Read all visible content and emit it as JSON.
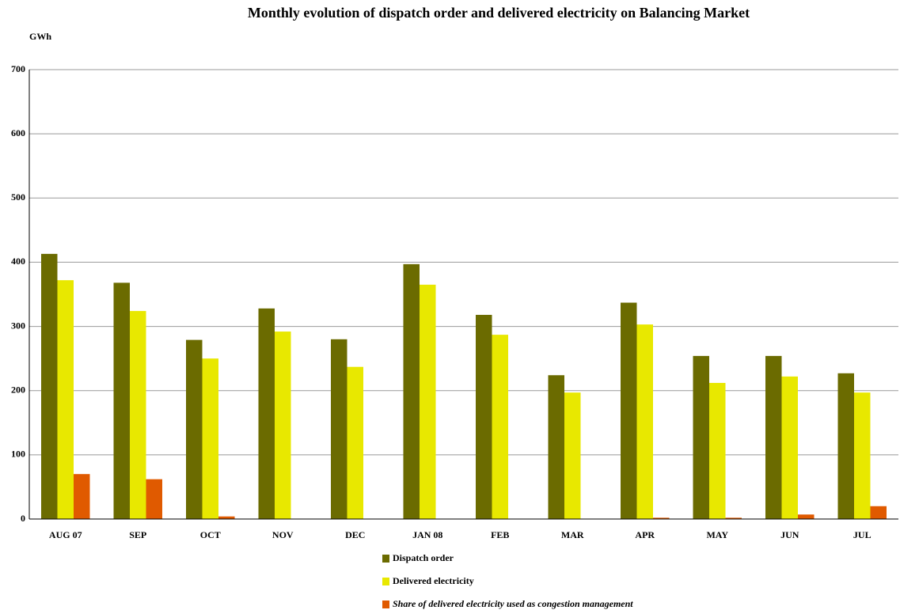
{
  "chart_data": {
    "type": "bar",
    "title": "Monthly evolution of dispatch order and delivered electricity on Balancing Market",
    "y_label": "GWh",
    "categories": [
      "AUG 07",
      "SEP",
      "OCT",
      "NOV",
      "DEC",
      "JAN 08",
      "FEB",
      "MAR",
      "APR",
      "MAY",
      "JUN",
      "JUL"
    ],
    "series": [
      {
        "name": "Dispatch order",
        "color": "#6b6b00",
        "values": [
          413,
          368,
          279,
          328,
          280,
          397,
          318,
          224,
          337,
          254,
          254,
          227
        ]
      },
      {
        "name": "Delivered electricity",
        "color": "#e8e800",
        "values": [
          372,
          324,
          250,
          292,
          237,
          365,
          287,
          197,
          303,
          212,
          222,
          197
        ]
      },
      {
        "name": "Share of delivered electricity used as congestion management",
        "color": "#e05a00",
        "values": [
          70,
          62,
          4,
          0,
          0,
          0,
          0,
          0,
          2,
          2,
          7,
          20
        ]
      }
    ],
    "ylim": [
      0,
      700
    ],
    "yticks": [
      0,
      100,
      200,
      300,
      400,
      500,
      600,
      700
    ],
    "grid": true
  }
}
